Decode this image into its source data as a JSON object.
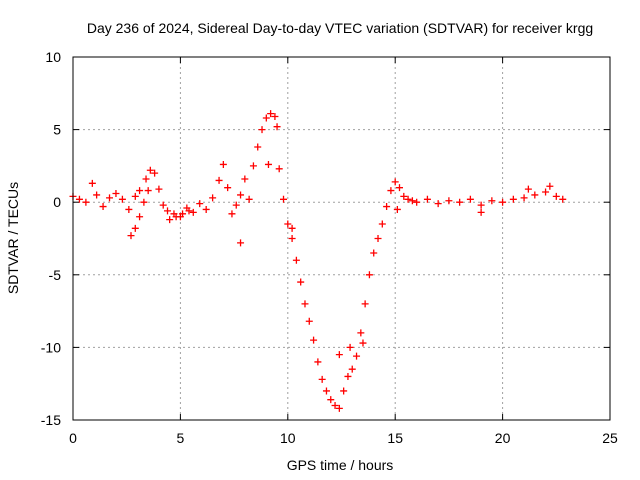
{
  "chart_data": {
    "type": "scatter",
    "title": "Day 236 of 2024, Sidereal Day-to-day VTEC variation (SDTVAR) for receiver krgg",
    "xlabel": "GPS time / hours",
    "ylabel": "SDTVAR / TECUs",
    "xlim": [
      0,
      25
    ],
    "ylim": [
      -15,
      10
    ],
    "xticks": [
      0,
      5,
      10,
      15,
      20,
      25
    ],
    "xtick_labels": [
      "0",
      "5",
      "10",
      "15",
      "20",
      "25"
    ],
    "yticks": [
      -15,
      -10,
      -5,
      0,
      5,
      10
    ],
    "ytick_labels": [
      "-15",
      "-10",
      "-5",
      "0",
      "5",
      "10"
    ],
    "grid": true,
    "marker": "+",
    "series": [
      {
        "name": "SDTVAR",
        "color": "#ff0000",
        "x": [
          0.0,
          0.3,
          0.6,
          0.9,
          1.1,
          1.4,
          1.7,
          2.0,
          2.3,
          2.6,
          2.9,
          3.1,
          3.4,
          3.6,
          3.8,
          4.0,
          4.2,
          4.4,
          4.7,
          5.0,
          5.3,
          5.6,
          5.9,
          6.2,
          6.5,
          6.8,
          7.0,
          7.2,
          7.4,
          7.6,
          7.8,
          8.0,
          8.2,
          8.4,
          8.6,
          8.8,
          9.0,
          9.2,
          9.4,
          9.6,
          9.8,
          10.0,
          10.2,
          10.4,
          10.6,
          10.8,
          11.0,
          11.2,
          11.4,
          11.6,
          11.8,
          12.0,
          12.2,
          12.4,
          12.6,
          12.8,
          13.0,
          13.2,
          13.4,
          13.6,
          13.8,
          14.0,
          14.2,
          14.4,
          14.6,
          14.8,
          15.0,
          15.2,
          15.4,
          15.6,
          15.8,
          16.0,
          16.5,
          17.0,
          17.5,
          18.0,
          18.5,
          19.0,
          19.5,
          20.0,
          20.5,
          21.0,
          21.5,
          22.0,
          22.5,
          22.8,
          2.7,
          2.9,
          3.1,
          3.3,
          3.5,
          4.5,
          4.8,
          5.1,
          5.4,
          7.8,
          9.1,
          9.5,
          10.2,
          12.4,
          12.9,
          13.5,
          15.1,
          19.0,
          21.2,
          22.2
        ],
        "y": [
          0.4,
          0.2,
          0.0,
          1.3,
          0.5,
          -0.3,
          0.3,
          0.6,
          0.2,
          -0.5,
          0.4,
          0.8,
          1.6,
          2.2,
          2.0,
          0.9,
          -0.2,
          -0.6,
          -0.8,
          -1.0,
          -0.4,
          -0.7,
          -0.1,
          -0.5,
          0.3,
          1.5,
          2.6,
          1.0,
          -0.8,
          -0.2,
          0.5,
          1.6,
          0.2,
          2.5,
          3.8,
          5.0,
          5.8,
          6.1,
          5.9,
          2.3,
          0.2,
          -1.5,
          -2.5,
          -4.0,
          -5.5,
          -7.0,
          -8.2,
          -9.5,
          -11.0,
          -12.2,
          -13.0,
          -13.6,
          -14.0,
          -14.2,
          -13.0,
          -12.0,
          -11.5,
          -10.6,
          -9.0,
          -7.0,
          -5.0,
          -3.5,
          -2.5,
          -1.5,
          -0.3,
          0.8,
          1.4,
          1.0,
          0.4,
          0.2,
          0.1,
          0.0,
          0.2,
          -0.1,
          0.1,
          0.0,
          0.2,
          -0.2,
          0.1,
          0.0,
          0.2,
          0.3,
          0.5,
          0.7,
          0.4,
          0.2,
          -2.3,
          -1.8,
          -1.0,
          0.0,
          0.8,
          -1.2,
          -1.0,
          -0.8,
          -0.6,
          -2.8,
          2.6,
          5.2,
          -1.8,
          -10.5,
          -10.0,
          -9.7,
          -0.5,
          -0.7,
          0.9,
          1.1
        ]
      }
    ]
  }
}
